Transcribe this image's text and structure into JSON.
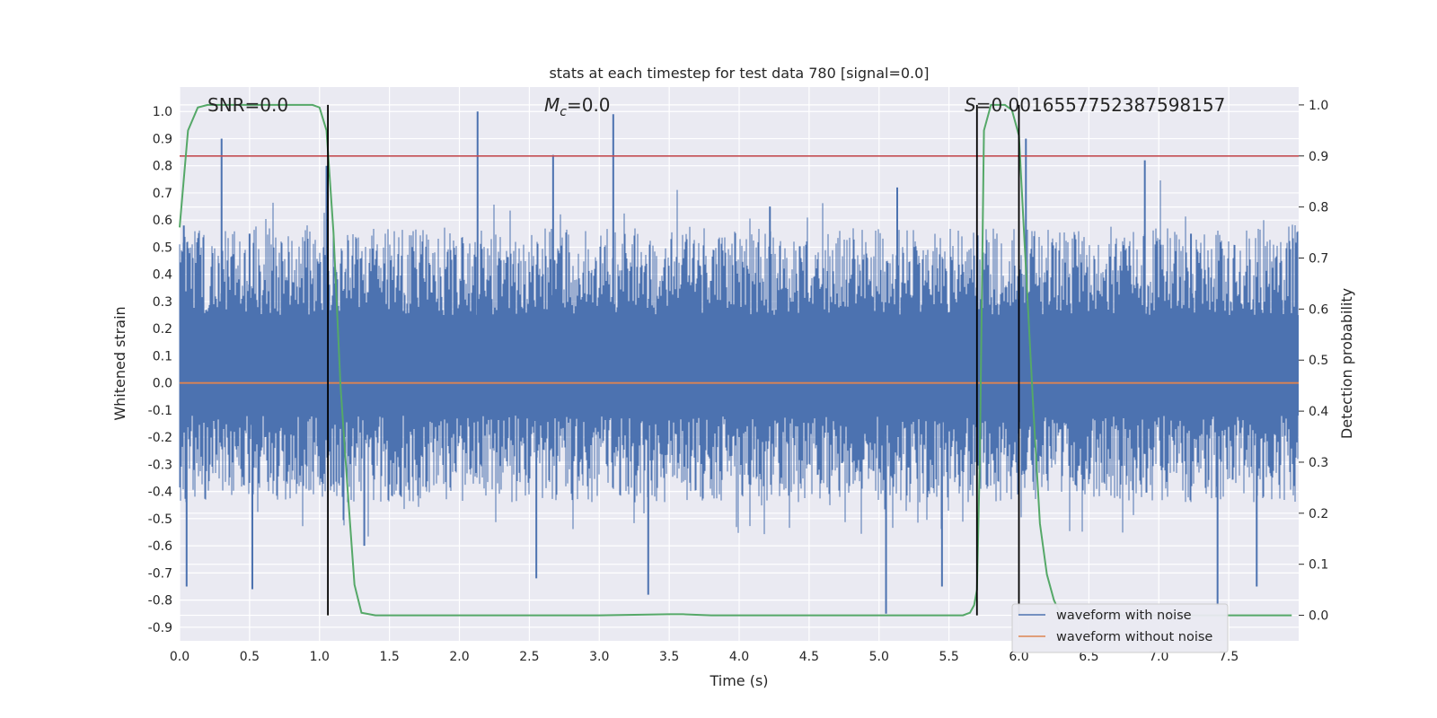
{
  "chart_data": {
    "type": "line",
    "title": "stats at each timestep for test data 780 [signal=0.0]",
    "xlabel": "Time (s)",
    "ylabel": "Whitened strain",
    "ylabel_right": "Detection probability",
    "xlim": [
      0,
      8
    ],
    "ylim": [
      -0.95,
      1.09
    ],
    "ylim_right": [
      -0.05,
      1.035
    ],
    "xticks": [
      "0.0",
      "0.5",
      "1.0",
      "1.5",
      "2.0",
      "2.5",
      "3.0",
      "3.5",
      "4.0",
      "4.5",
      "5.0",
      "5.5",
      "6.0",
      "6.5",
      "7.0",
      "7.5"
    ],
    "yticks": [
      "1.0",
      "0.9",
      "0.8",
      "0.7",
      "0.6",
      "0.5",
      "0.4",
      "0.3",
      "0.2",
      "0.1",
      "0.0",
      "-0.1",
      "-0.2",
      "-0.3",
      "-0.4",
      "-0.5",
      "-0.6",
      "-0.7",
      "-0.8",
      "-0.9"
    ],
    "yticks_right": [
      "1.0",
      "0.9",
      "0.8",
      "0.7",
      "0.6",
      "0.5",
      "0.4",
      "0.3",
      "0.2",
      "0.1",
      "0.0"
    ],
    "annotations": {
      "snr": "SNR=0.0",
      "mc_symbol": "M",
      "mc_sub": "c",
      "mc_value": "=0.0",
      "s_symbol": "S",
      "s_value": "=0.001655775238759815​7"
    },
    "threshold": 0.9,
    "vlines": [
      1.06,
      5.7,
      6.0
    ],
    "series": [
      {
        "name": "waveform with noise",
        "color": "#4c72b0",
        "band_upper": 0.25,
        "band_lower": -0.12,
        "peaks": [
          {
            "x": 0.03,
            "y": 0.58
          },
          {
            "x": 0.3,
            "y": 0.9
          },
          {
            "x": 0.5,
            "y": 0.55
          },
          {
            "x": 1.05,
            "y": 0.8
          },
          {
            "x": 2.13,
            "y": 1.0
          },
          {
            "x": 2.67,
            "y": 0.84
          },
          {
            "x": 3.1,
            "y": 0.99
          },
          {
            "x": 4.22,
            "y": 0.65
          },
          {
            "x": 5.13,
            "y": 0.72
          },
          {
            "x": 6.05,
            "y": 0.9
          },
          {
            "x": 6.9,
            "y": 0.82
          },
          {
            "x": 7.23,
            "y": 0.55
          }
        ],
        "troughs": [
          {
            "x": 0.05,
            "y": -0.75
          },
          {
            "x": 0.52,
            "y": -0.76
          },
          {
            "x": 1.32,
            "y": -0.6
          },
          {
            "x": 2.55,
            "y": -0.72
          },
          {
            "x": 3.35,
            "y": -0.78
          },
          {
            "x": 5.05,
            "y": -0.85
          },
          {
            "x": 5.45,
            "y": -0.75
          },
          {
            "x": 7.7,
            "y": -0.75
          },
          {
            "x": 7.42,
            "y": -0.82
          }
        ]
      },
      {
        "name": "waveform without noise",
        "color": "#dd8452",
        "x": [
          0,
          8
        ],
        "y": [
          0.0,
          0.0
        ]
      },
      {
        "name": "",
        "color": "#55a868",
        "axis": "right",
        "x": [
          0.0,
          0.06,
          0.13,
          0.2,
          0.3,
          0.5,
          0.8,
          0.95,
          1.0,
          1.05,
          1.1,
          1.15,
          1.2,
          1.25,
          1.3,
          1.4,
          2.0,
          3.0,
          3.5,
          3.6,
          3.8,
          4.0,
          5.0,
          5.6,
          5.65,
          5.68,
          5.7,
          5.72,
          5.75,
          5.8,
          5.85,
          5.9,
          5.95,
          6.0,
          6.05,
          6.1,
          6.15,
          6.2,
          6.25,
          6.3,
          6.5,
          7.0,
          7.5,
          7.95
        ],
        "y": [
          0.76,
          0.95,
          0.995,
          1.0,
          1.0,
          1.0,
          1.0,
          1.0,
          0.995,
          0.95,
          0.75,
          0.45,
          0.25,
          0.06,
          0.005,
          0.0,
          0.0,
          0.0,
          0.002,
          0.002,
          0.0,
          0.0,
          0.0,
          0.0,
          0.005,
          0.02,
          0.05,
          0.3,
          0.95,
          1.0,
          1.0,
          1.0,
          0.99,
          0.94,
          0.68,
          0.42,
          0.18,
          0.08,
          0.03,
          0.0,
          0.0,
          0.0,
          0.0,
          0.0
        ]
      }
    ],
    "grid": true,
    "legend_position": "lower-right"
  },
  "colors": {
    "plot_bg": "#eaeaf2",
    "grid": "#ffffff",
    "noise": "#4c72b0",
    "clean": "#dd8452",
    "prob": "#55a868",
    "threshold": "#c44e52",
    "vline": "#000000"
  }
}
